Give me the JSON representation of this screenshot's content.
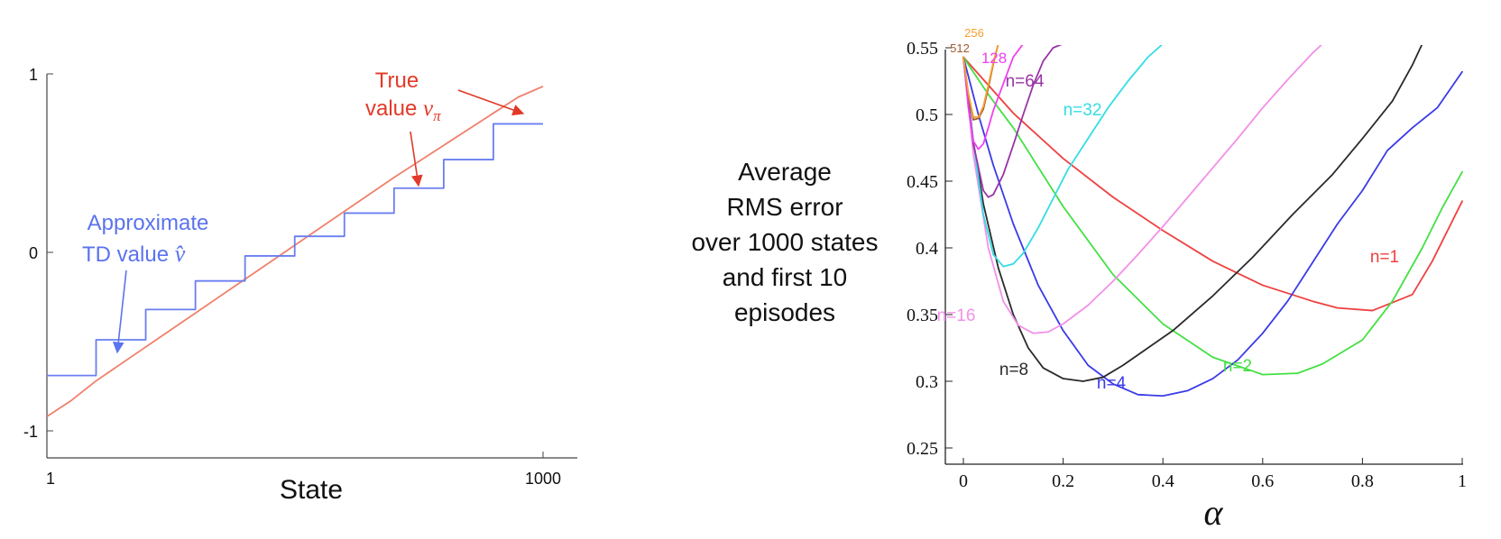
{
  "chart_data": [
    {
      "type": "line",
      "title": "",
      "xlabel": "State",
      "ylabel": "",
      "xlim": [
        1,
        1000
      ],
      "ylim": [
        -1,
        1
      ],
      "x_tick_labels": [
        "1",
        "1000"
      ],
      "y_tick_labels": [
        "-1",
        "0",
        "1"
      ],
      "grid": false,
      "series": [
        {
          "name": "True value",
          "symbol": "v_π",
          "color": "#f0806c",
          "x": [
            1,
            50,
            100,
            200,
            300,
            400,
            500,
            600,
            700,
            800,
            900,
            950,
            1000
          ],
          "y": [
            -0.92,
            -0.83,
            -0.72,
            -0.53,
            -0.34,
            -0.15,
            0.04,
            0.23,
            0.42,
            0.6,
            0.78,
            0.87,
            0.93
          ]
        },
        {
          "name": "Approximate TD value",
          "symbol": "v̂",
          "color": "#6a7ef0",
          "step": true,
          "x": [
            1,
            100,
            200,
            300,
            400,
            500,
            600,
            700,
            800,
            900,
            1000
          ],
          "y": [
            -0.69,
            -0.49,
            -0.32,
            -0.16,
            -0.02,
            0.09,
            0.22,
            0.36,
            0.52,
            0.72,
            0.72
          ]
        }
      ],
      "annotations": {
        "true_line1": "True",
        "true_line2": "value ",
        "true_symbol": "v",
        "true_subscript": "π",
        "approx_line1": "Approximate",
        "approx_line2": "TD value ",
        "approx_symbol": "v̂"
      }
    },
    {
      "type": "line",
      "title": "",
      "ylabel": "Average RMS error over 1000 states and first 10 episodes",
      "ylabel_lines": [
        "Average",
        "RMS error",
        "over 1000 states",
        "and first 10",
        "episodes"
      ],
      "xlabel": "α",
      "xlim": [
        0,
        1
      ],
      "ylim": [
        0.25,
        0.55
      ],
      "x_tick_labels": [
        "0",
        "0.2",
        "0.4",
        "0.6",
        "0.8",
        "1"
      ],
      "x_tick_values": [
        0,
        0.2,
        0.4,
        0.6,
        0.8,
        1
      ],
      "y_tick_labels": [
        "0.25",
        "0.3",
        "0.35",
        "0.4",
        "0.45",
        "0.5",
        "0.55"
      ],
      "y_tick_values": [
        0.25,
        0.3,
        0.35,
        0.4,
        0.45,
        0.5,
        0.55
      ],
      "grid": false,
      "series": [
        {
          "name": "n=1",
          "color": "#ef4040",
          "x": [
            0,
            0.1,
            0.2,
            0.3,
            0.4,
            0.5,
            0.6,
            0.7,
            0.75,
            0.82,
            0.9,
            0.94,
            1.0
          ],
          "y": [
            0.543,
            0.501,
            0.467,
            0.438,
            0.413,
            0.39,
            0.372,
            0.36,
            0.355,
            0.353,
            0.365,
            0.39,
            0.435
          ]
        },
        {
          "name": "n=2",
          "color": "#44e044",
          "x": [
            0,
            0.05,
            0.1,
            0.2,
            0.3,
            0.4,
            0.5,
            0.6,
            0.67,
            0.72,
            0.8,
            0.86,
            0.92,
            0.96,
            1.0
          ],
          "y": [
            0.543,
            0.515,
            0.49,
            0.431,
            0.38,
            0.343,
            0.318,
            0.305,
            0.306,
            0.313,
            0.331,
            0.36,
            0.4,
            0.43,
            0.457
          ]
        },
        {
          "name": "n=4",
          "color": "#3a3ae8",
          "x": [
            0,
            0.03,
            0.06,
            0.1,
            0.15,
            0.2,
            0.25,
            0.3,
            0.35,
            0.4,
            0.45,
            0.5,
            0.55,
            0.6,
            0.65,
            0.7,
            0.75,
            0.8,
            0.85,
            0.9,
            0.95,
            1.0
          ],
          "y": [
            0.543,
            0.5,
            0.462,
            0.418,
            0.372,
            0.338,
            0.312,
            0.298,
            0.29,
            0.289,
            0.293,
            0.302,
            0.316,
            0.336,
            0.36,
            0.389,
            0.418,
            0.443,
            0.473,
            0.49,
            0.505,
            0.532
          ]
        },
        {
          "name": "n=8",
          "color": "#2a2a2a",
          "x": [
            0,
            0.02,
            0.04,
            0.07,
            0.1,
            0.13,
            0.16,
            0.2,
            0.24,
            0.28,
            0.32,
            0.37,
            0.42,
            0.5,
            0.58,
            0.66,
            0.74,
            0.8,
            0.86,
            0.9,
            0.92
          ],
          "y": [
            0.543,
            0.48,
            0.433,
            0.385,
            0.35,
            0.325,
            0.31,
            0.302,
            0.3,
            0.303,
            0.312,
            0.325,
            0.338,
            0.364,
            0.393,
            0.425,
            0.455,
            0.482,
            0.51,
            0.537,
            0.553
          ]
        },
        {
          "name": "n=16",
          "color": "#f290e8",
          "x": [
            0,
            0.02,
            0.05,
            0.08,
            0.11,
            0.14,
            0.17,
            0.2,
            0.25,
            0.3,
            0.35,
            0.4,
            0.45,
            0.5,
            0.55,
            0.6,
            0.65,
            0.7,
            0.72
          ],
          "y": [
            0.543,
            0.47,
            0.4,
            0.36,
            0.342,
            0.336,
            0.337,
            0.343,
            0.357,
            0.375,
            0.395,
            0.416,
            0.438,
            0.46,
            0.482,
            0.505,
            0.526,
            0.546,
            0.553
          ]
        },
        {
          "name": "n=32",
          "color": "#33dde5",
          "x": [
            0,
            0.02,
            0.04,
            0.06,
            0.08,
            0.1,
            0.12,
            0.15,
            0.18,
            0.21,
            0.25,
            0.29,
            0.33,
            0.37,
            0.4
          ],
          "y": [
            0.543,
            0.48,
            0.425,
            0.395,
            0.386,
            0.388,
            0.396,
            0.415,
            0.437,
            0.459,
            0.482,
            0.505,
            0.525,
            0.543,
            0.553
          ]
        },
        {
          "name": "n=64",
          "color": "#9933a6",
          "x": [
            0,
            0.02,
            0.04,
            0.05,
            0.06,
            0.08,
            0.1,
            0.12,
            0.14,
            0.16,
            0.18,
            0.2
          ],
          "y": [
            0.543,
            0.478,
            0.443,
            0.438,
            0.44,
            0.455,
            0.477,
            0.5,
            0.522,
            0.54,
            0.55,
            0.553
          ]
        },
        {
          "name": "128",
          "color": "#f040f0",
          "x": [
            0,
            0.01,
            0.02,
            0.03,
            0.04,
            0.05,
            0.06,
            0.08,
            0.1,
            0.12
          ],
          "y": [
            0.543,
            0.505,
            0.48,
            0.474,
            0.478,
            0.49,
            0.503,
            0.523,
            0.543,
            0.553
          ]
        },
        {
          "name": "512",
          "color": "#a05a2a",
          "x": [
            0,
            0.01,
            0.02,
            0.03,
            0.04,
            0.05,
            0.06,
            0.07
          ],
          "y": [
            0.543,
            0.515,
            0.496,
            0.497,
            0.504,
            0.52,
            0.538,
            0.553
          ]
        },
        {
          "name": "256",
          "color": "#f5a030",
          "x": [
            0,
            0.01,
            0.02,
            0.03,
            0.04,
            0.05,
            0.06,
            0.07
          ],
          "y": [
            0.543,
            0.516,
            0.498,
            0.498,
            0.506,
            0.522,
            0.539,
            0.553
          ]
        }
      ]
    }
  ]
}
